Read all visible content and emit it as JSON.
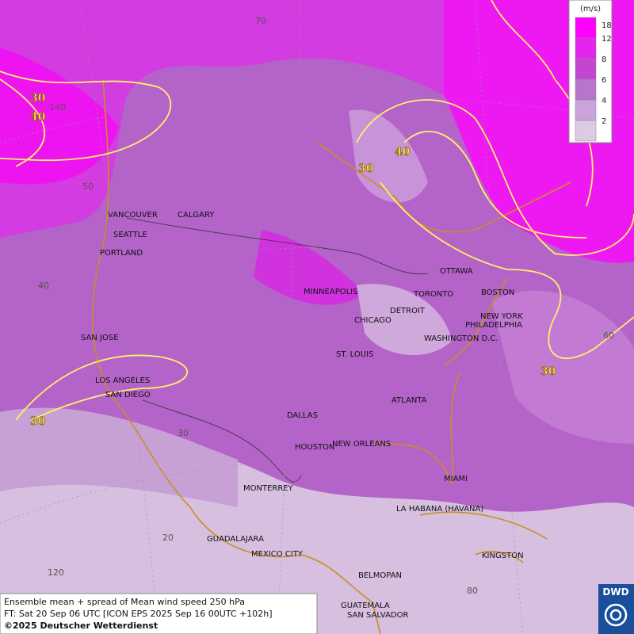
{
  "map": {
    "legend": {
      "unit": "(m/s)",
      "levels": [
        18,
        12,
        8,
        6,
        4,
        2
      ]
    },
    "cities": [
      "VANCOUVER",
      "CALGARY",
      "SEATTLE",
      "PORTLAND",
      "SAN JOSE",
      "LOS ANGELES",
      "SAN DIEGO",
      "MINNEAPOLIS",
      "CHICAGO",
      "DETROIT",
      "TORONTO",
      "OTTAWA",
      "BOSTON",
      "NEW YORK",
      "PHILADELPHIA",
      "WASHINGTON D.C.",
      "ST. LOUIS",
      "ATLANTA",
      "DALLAS",
      "HOUSTON",
      "NEW ORLEANS",
      "MIAMI",
      "MONTERREY",
      "LA HABANA (HAVANA)",
      "GUADALAJARA",
      "MEXICO CITY",
      "KINGSTON",
      "BELMOPAN",
      "GUATEMALA",
      "SAN SALVADOR"
    ],
    "contour_labels": [
      30,
      40,
      40,
      30,
      30,
      30
    ],
    "graticule_labels": [
      70,
      140,
      50,
      40,
      30,
      20,
      120,
      80,
      60
    ],
    "footer": [
      "Ensemble mean + spread of Mean wind speed 250 hPa",
      "FT: Sat 20 Sep 06 UTC [ICON EPS 2025 Sep 16 00UTC +102h]",
      "©2025 Deutscher Wetterdienst"
    ],
    "logo": "DWD"
  }
}
